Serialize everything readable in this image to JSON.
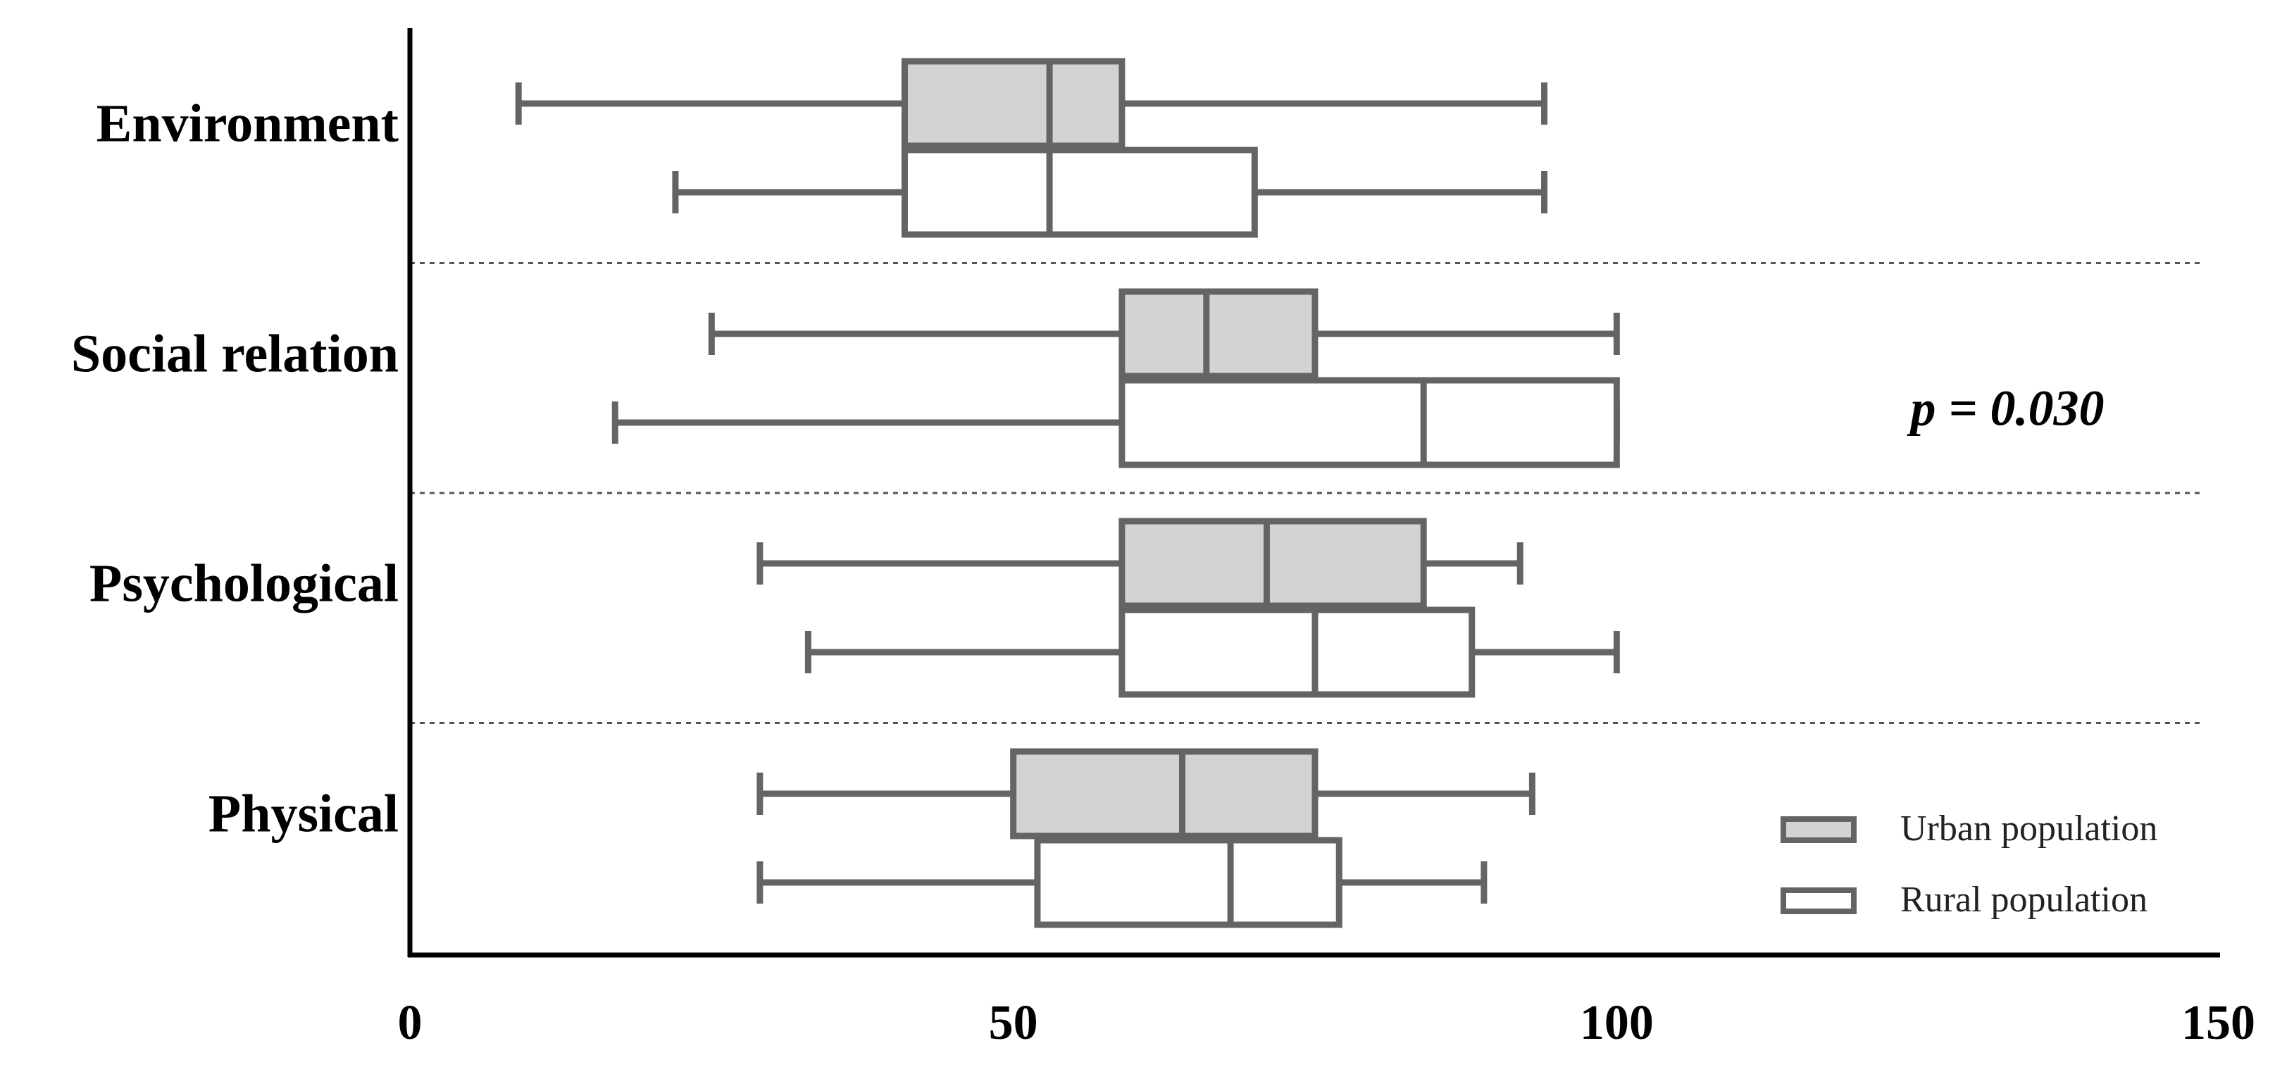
{
  "chart_data": {
    "type": "boxplot",
    "orientation": "horizontal",
    "title": "",
    "xlabel": "",
    "ylabel": "",
    "xlim": [
      0,
      150
    ],
    "xticks": [
      0,
      50,
      100,
      150
    ],
    "grid": false,
    "category_separators": "dashed",
    "legend_position": "bottom-right",
    "categories": [
      "Environment",
      "Social relation",
      "Psychological",
      "Physical"
    ],
    "series": [
      {
        "name": "Urban population",
        "fill": "#d3d3d3",
        "stroke": "#646464",
        "boxes": [
          {
            "category": "Environment",
            "min": 9,
            "q1": 41,
            "median": 53,
            "q3": 59,
            "max": 94
          },
          {
            "category": "Social relation",
            "min": 25,
            "q1": 59,
            "median": 66,
            "q3": 75,
            "max": 100
          },
          {
            "category": "Psychological",
            "min": 29,
            "q1": 59,
            "median": 71,
            "q3": 84,
            "max": 92
          },
          {
            "category": "Physical",
            "min": 29,
            "q1": 50,
            "median": 64,
            "q3": 75,
            "max": 93
          }
        ]
      },
      {
        "name": "Rural population",
        "fill": "#ffffff",
        "stroke": "#646464",
        "boxes": [
          {
            "category": "Environment",
            "min": 22,
            "q1": 41,
            "median": 53,
            "q3": 70,
            "max": 94
          },
          {
            "category": "Social relation",
            "min": 17,
            "q1": 59,
            "median": 84,
            "q3": 100,
            "max": 100
          },
          {
            "category": "Psychological",
            "min": 33,
            "q1": 59,
            "median": 75,
            "q3": 88,
            "max": 100
          },
          {
            "category": "Physical",
            "min": 29,
            "q1": 52,
            "median": 68,
            "q3": 77,
            "max": 89
          }
        ]
      }
    ],
    "annotations": [
      {
        "text": "p = 0.030",
        "category": "Social relation"
      }
    ]
  }
}
